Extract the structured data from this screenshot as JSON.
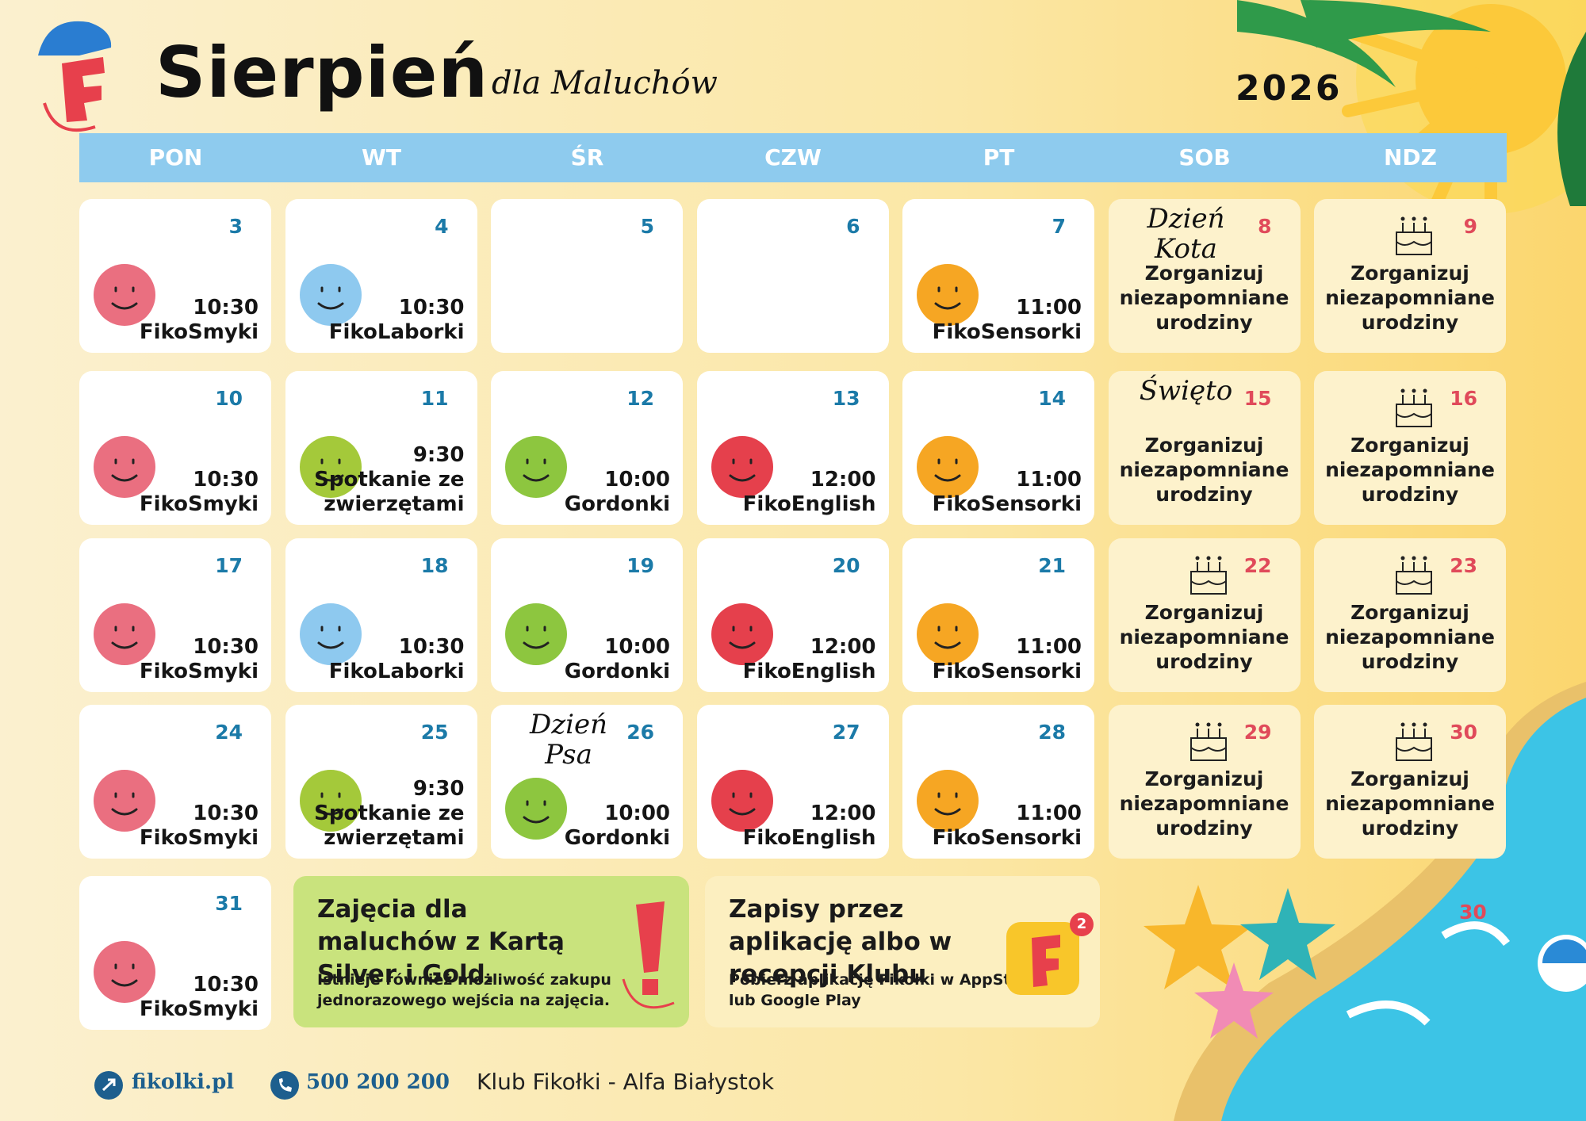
{
  "header": {
    "title": "Sierpień",
    "subtitle": "dla Maluchów",
    "year": "2026"
  },
  "weekdays": [
    "PON",
    "WT",
    "ŚR",
    "CZW",
    "PT",
    "SOB",
    "NDZ"
  ],
  "weeks": [
    [
      {
        "day": "3",
        "time": "10:30",
        "activity": "FikoSmyki"
      },
      {
        "day": "4",
        "time": "10:30",
        "activity": "FikoLaborki"
      },
      {
        "day": "5"
      },
      {
        "day": "6"
      },
      {
        "day": "7",
        "time": "11:00",
        "activity": "FikoSensorki"
      },
      {
        "day": "8",
        "note": "Dzień Kota",
        "text": "Zorganizuj niezapomniane urodziny"
      },
      {
        "day": "9",
        "text": "Zorganizuj niezapomniane urodziny"
      }
    ],
    [
      {
        "day": "10",
        "time": "10:30",
        "activity": "FikoSmyki"
      },
      {
        "day": "11",
        "time": "9:30",
        "activity": "Spotkanie ze zwierzętami"
      },
      {
        "day": "12",
        "time": "10:00",
        "activity": "Gordonki"
      },
      {
        "day": "13",
        "time": "12:00",
        "activity": "FikoEnglish"
      },
      {
        "day": "14",
        "time": "11:00",
        "activity": "FikoSensorki"
      },
      {
        "day": "15",
        "note": "Święto",
        "text": "Zorganizuj niezapomniane urodziny"
      },
      {
        "day": "16",
        "text": "Zorganizuj niezapomniane urodziny"
      }
    ],
    [
      {
        "day": "17",
        "time": "10:30",
        "activity": "FikoSmyki"
      },
      {
        "day": "18",
        "time": "10:30",
        "activity": "FikoLaborki"
      },
      {
        "day": "19",
        "time": "10:00",
        "activity": "Gordonki"
      },
      {
        "day": "20",
        "time": "12:00",
        "activity": "FikoEnglish"
      },
      {
        "day": "21",
        "time": "11:00",
        "activity": "FikoSensorki"
      },
      {
        "day": "22",
        "text": "Zorganizuj niezapomniane urodziny"
      },
      {
        "day": "23",
        "text": "Zorganizuj niezapomniane urodziny"
      }
    ],
    [
      {
        "day": "24",
        "time": "10:30",
        "activity": "FikoSmyki"
      },
      {
        "day": "25",
        "time": "9:30",
        "activity": "Spotkanie ze zwierzętami"
      },
      {
        "day": "26",
        "note": "Dzień Psa",
        "time": "10:00",
        "activity": "Gordonki"
      },
      {
        "day": "27",
        "time": "12:00",
        "activity": "FikoEnglish"
      },
      {
        "day": "28",
        "time": "11:00",
        "activity": "FikoSensorki"
      },
      {
        "day": "29",
        "text": "Zorganizuj niezapomniane urodziny"
      },
      {
        "day": "30",
        "text": "Zorganizuj niezapomniane urodziny"
      }
    ],
    [
      {
        "day": "31",
        "time": "10:30",
        "activity": "FikoSmyki"
      }
    ]
  ],
  "notices": [
    {
      "title": "Zajęcia dla maluchów z Kartą Silver i Gold.",
      "body": "Istnieje również możliwość zakupu jednorazowego wejścia na zajęcia."
    },
    {
      "title": "Zapisy przez aplikację albo w recepcji Klubu",
      "body": "Pobierz aplikację Fikołki w AppStore lub Google Play",
      "badge": "2"
    }
  ],
  "stray_number": "30",
  "footer": {
    "website": "fikolki.pl",
    "phone": "500 200 200",
    "club": "Klub Fikołki - Alfa Białystok"
  }
}
